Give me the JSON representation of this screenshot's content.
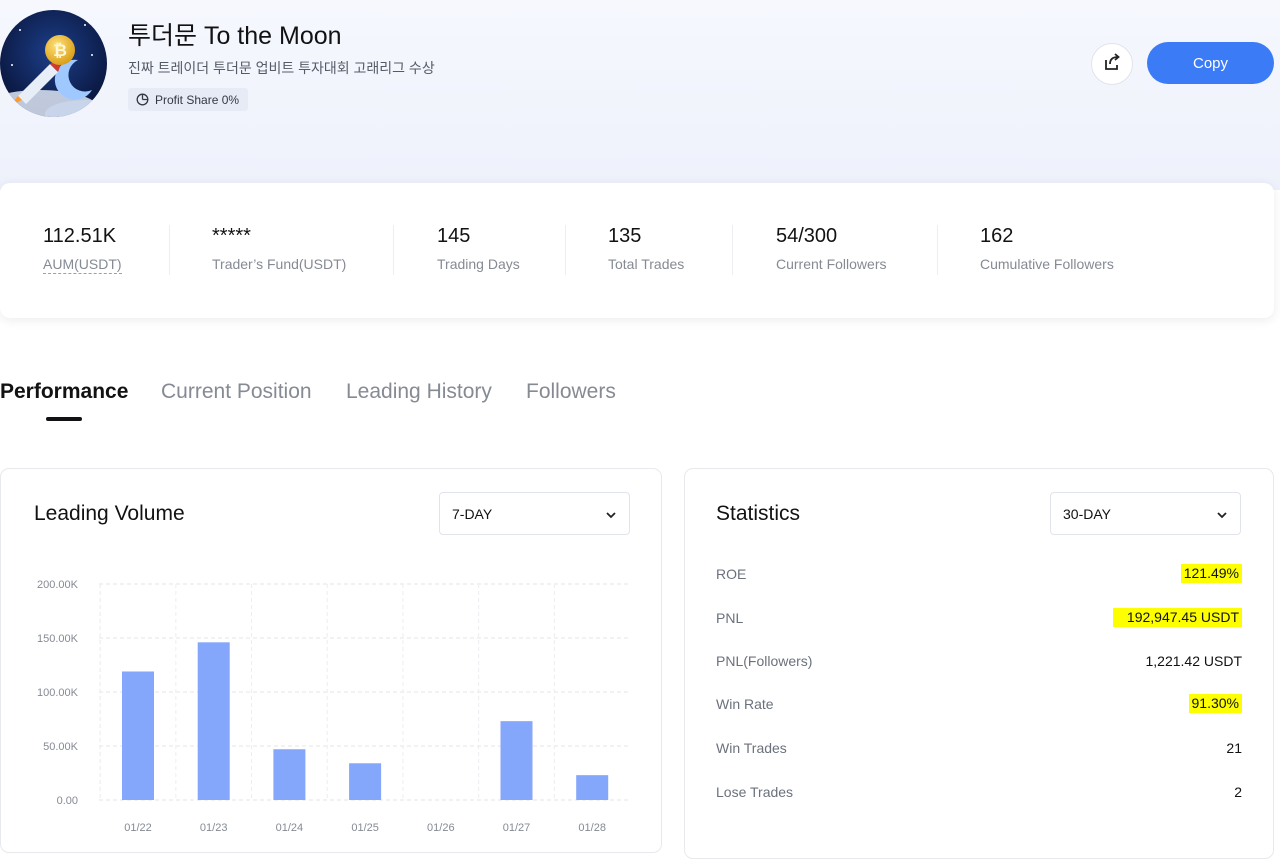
{
  "trader": {
    "name": "투더문 To the Moon",
    "bio": "진짜 트레이더 투더문 업비트 투자대회 고래리그 수상",
    "profit_share": "Profit Share 0%"
  },
  "actions": {
    "copy_label": "Copy"
  },
  "summary": [
    {
      "value": "112.51K",
      "label": "AUM(USDT)"
    },
    {
      "value": "*****",
      "label": "Trader’s Fund(USDT)"
    },
    {
      "value": "145",
      "label": "Trading Days"
    },
    {
      "value": "135",
      "label": "Total Trades"
    },
    {
      "value": "54/300",
      "label": "Current Followers"
    },
    {
      "value": "162",
      "label": "Cumulative Followers"
    }
  ],
  "tabs": [
    "Performance",
    "Current Position",
    "Leading History",
    "Followers"
  ],
  "volume_panel": {
    "title": "Leading Volume",
    "period": "7-DAY"
  },
  "stats_panel": {
    "title": "Statistics",
    "period": "30-DAY",
    "rows": [
      {
        "key": "ROE",
        "value": "121.49%"
      },
      {
        "key": "PNL",
        "value": "192,947.45 USDT"
      },
      {
        "key": "PNL(Followers)",
        "value": "1,221.42 USDT"
      },
      {
        "key": "Win Rate",
        "value": "91.30%"
      },
      {
        "key": "Win Trades",
        "value": "21"
      },
      {
        "key": "Lose Trades",
        "value": "2"
      }
    ],
    "highlight_color": "#fdff00"
  },
  "colors": {
    "accent": "#3b7cf6",
    "bar": "#84a6fb"
  },
  "chart_data": {
    "type": "bar",
    "categories": [
      "01/22",
      "01/23",
      "01/24",
      "01/25",
      "01/26",
      "01/27",
      "01/28"
    ],
    "values": [
      119000,
      146000,
      47000,
      34000,
      0,
      73000,
      23000
    ],
    "yticks": [
      "0.00",
      "50.00K",
      "100.00K",
      "150.00K",
      "200.00K"
    ],
    "ylim": [
      0,
      200000
    ],
    "grid": true
  }
}
